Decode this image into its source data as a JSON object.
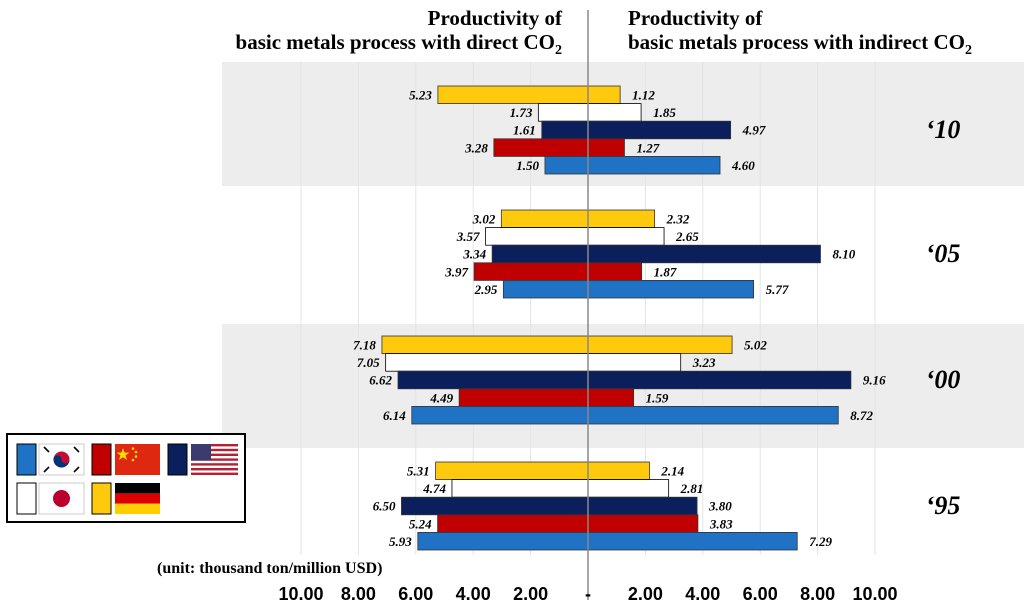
{
  "chart_data": {
    "type": "bar",
    "orientation": "horizontal-diverging",
    "title_left": [
      "Productivity of",
      "basic metals process with direct CO",
      "2"
    ],
    "title_right": [
      "Productivity of",
      "basic metals process with indirect CO",
      "2"
    ],
    "unit_label": "(unit: thousand ton/million USD)",
    "xlim": [
      -10,
      10
    ],
    "x_ticks_left": [
      "10.00",
      "8.00",
      "6.00",
      "4.00",
      "2.00"
    ],
    "x_ticks_right": [
      "2.00",
      "4.00",
      "6.00",
      "8.00",
      "10.00"
    ],
    "zero_label": "-",
    "years": [
      "‘10",
      "‘05",
      "‘00",
      "‘95"
    ],
    "series": [
      {
        "name": "Germany",
        "color": "#FFC90E",
        "direct": [
          5.23,
          3.02,
          7.18,
          5.31
        ],
        "indirect": [
          1.12,
          2.32,
          5.02,
          2.14
        ]
      },
      {
        "name": "Japan",
        "color": "#FFFFFF",
        "direct": [
          1.73,
          3.57,
          7.05,
          4.74
        ],
        "indirect": [
          1.85,
          2.65,
          3.23,
          2.81
        ]
      },
      {
        "name": "USA",
        "color": "#0A1F5C",
        "direct": [
          1.61,
          3.34,
          6.62,
          6.5
        ],
        "indirect": [
          4.97,
          8.1,
          9.16,
          3.8
        ]
      },
      {
        "name": "China",
        "color": "#C00000",
        "direct": [
          3.28,
          3.97,
          4.49,
          5.24
        ],
        "indirect": [
          1.27,
          1.87,
          1.59,
          3.83
        ]
      },
      {
        "name": "Korea",
        "color": "#1F72C4",
        "direct": [
          1.5,
          2.95,
          6.14,
          5.93
        ],
        "indirect": [
          4.6,
          5.77,
          8.72,
          7.29
        ]
      }
    ]
  },
  "legend": [
    {
      "name": "Korea",
      "swatch": "#1F72C4",
      "flag": "korea-flag"
    },
    {
      "name": "China",
      "swatch": "#C00000",
      "flag": "china-flag"
    },
    {
      "name": "USA",
      "swatch": "#0A1F5C",
      "flag": "usa-flag"
    },
    {
      "name": "Japan",
      "swatch": "#FFFFFF",
      "flag": "japan-flag"
    },
    {
      "name": "Germany",
      "swatch": "#FFC90E",
      "flag": "germany-flag"
    }
  ]
}
